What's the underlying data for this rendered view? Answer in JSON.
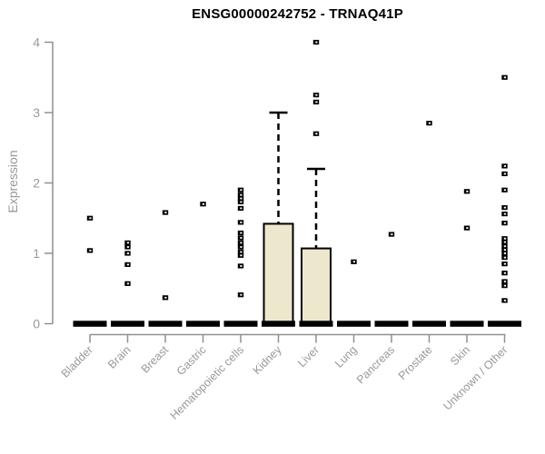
{
  "page": {
    "background": "#ffffff"
  },
  "chart_data": {
    "type": "boxplot",
    "title": "ENSG00000242752 - TRNAQ41P",
    "ylabel": "Expression",
    "xlabel": "",
    "ylim": [
      0,
      4
    ],
    "yticks": [
      0,
      1,
      2,
      3,
      4
    ],
    "grid": false,
    "legend": "none",
    "categories": [
      "Bladder",
      "Brain",
      "Breast",
      "Gastric",
      "Hematopoietic cells",
      "Kidney",
      "Liver",
      "Lung",
      "Pancreas",
      "Prostate",
      "Skin",
      "Unknown / Other"
    ],
    "series": [
      {
        "label": "Bladder",
        "q1": 0,
        "median": 0,
        "q3": 0,
        "whisker_low": 0,
        "whisker_high": 0,
        "outliers": [
          1.5,
          1.04
        ]
      },
      {
        "label": "Brain",
        "q1": 0,
        "median": 0,
        "q3": 0,
        "whisker_low": 0,
        "whisker_high": 0,
        "outliers": [
          1.15,
          1.09,
          1.0,
          0.84,
          0.57
        ]
      },
      {
        "label": "Breast",
        "q1": 0,
        "median": 0,
        "q3": 0,
        "whisker_low": 0,
        "whisker_high": 0,
        "outliers": [
          1.58,
          0.37
        ]
      },
      {
        "label": "Gastric",
        "q1": 0,
        "median": 0,
        "q3": 0,
        "whisker_low": 0,
        "whisker_high": 0,
        "outliers": [
          1.7
        ]
      },
      {
        "label": "Hematopoietic cells",
        "q1": 0,
        "median": 0,
        "q3": 0,
        "whisker_low": 0,
        "whisker_high": 0,
        "outliers": [
          1.9,
          1.83,
          1.78,
          1.73,
          1.64,
          1.44,
          1.29,
          1.22,
          1.15,
          1.09,
          1.02,
          0.97,
          0.82,
          0.41
        ]
      },
      {
        "label": "Kidney",
        "q1": 0,
        "median": 0,
        "q3": 1.42,
        "whisker_low": 0,
        "whisker_high": 3.0,
        "outliers": []
      },
      {
        "label": "Liver",
        "q1": 0,
        "median": 0,
        "q3": 1.07,
        "whisker_low": 0,
        "whisker_high": 2.2,
        "outliers": [
          4.0,
          3.25,
          3.15,
          2.7
        ]
      },
      {
        "label": "Lung",
        "q1": 0,
        "median": 0,
        "q3": 0,
        "whisker_low": 0,
        "whisker_high": 0,
        "outliers": [
          0.88
        ]
      },
      {
        "label": "Pancreas",
        "q1": 0,
        "median": 0,
        "q3": 0,
        "whisker_low": 0,
        "whisker_high": 0,
        "outliers": [
          1.27
        ]
      },
      {
        "label": "Prostate",
        "q1": 0,
        "median": 0,
        "q3": 0,
        "whisker_low": 0,
        "whisker_high": 0,
        "outliers": [
          2.85
        ]
      },
      {
        "label": "Skin",
        "q1": 0,
        "median": 0,
        "q3": 0,
        "whisker_low": 0,
        "whisker_high": 0,
        "outliers": [
          1.88,
          1.36
        ]
      },
      {
        "label": "Unknown / Other",
        "q1": 0,
        "median": 0,
        "q3": 0,
        "whisker_low": 0,
        "whisker_high": 0,
        "outliers": [
          3.5,
          2.24,
          2.13,
          1.9,
          1.65,
          1.56,
          1.43,
          1.21,
          1.16,
          1.1,
          1.05,
          1.0,
          0.94,
          0.85,
          0.72,
          0.6,
          0.54,
          0.33
        ]
      }
    ],
    "colors": {
      "box_fill": "#EDE7CD",
      "box_border": "#000000",
      "median_bar": "#000000",
      "whisker": "#000000",
      "outlier_marker": "#000000",
      "axis_line": "#8f8f8f",
      "tick_text": "#999999",
      "title_text": "#000000",
      "background": "#ffffff"
    }
  }
}
